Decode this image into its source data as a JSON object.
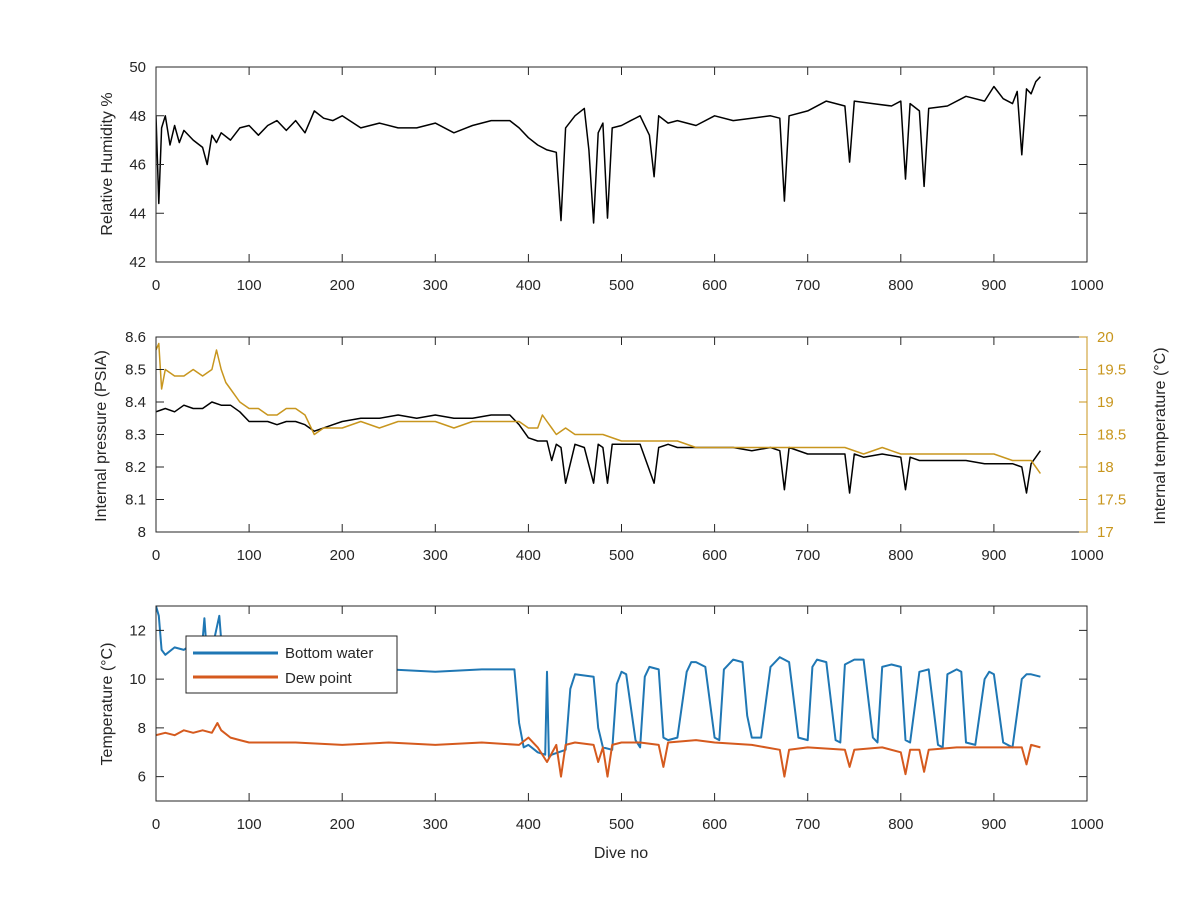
{
  "colors": {
    "humidity": "#000000",
    "pressure": "#000000",
    "internal_temperature": "#c8961e",
    "bottom_water": "#1f77b4",
    "dew_point": "#d55a1e",
    "axis": "#262626"
  },
  "chart_data": [
    {
      "type": "line",
      "ylabel": "Relative Humidity %",
      "xlabel": "",
      "xlim": [
        0,
        1000
      ],
      "ylim": [
        42,
        50
      ],
      "xticks": [
        0,
        100,
        200,
        300,
        400,
        500,
        600,
        700,
        800,
        900,
        1000
      ],
      "yticks": [
        42,
        44,
        46,
        48,
        50
      ],
      "series": [
        {
          "color": "#000000",
          "x": [
            0,
            3,
            6,
            10,
            15,
            20,
            25,
            30,
            40,
            50,
            55,
            60,
            65,
            70,
            80,
            90,
            100,
            110,
            120,
            130,
            140,
            150,
            160,
            170,
            180,
            190,
            200,
            220,
            240,
            260,
            280,
            300,
            320,
            340,
            360,
            380,
            390,
            400,
            410,
            420,
            430,
            435,
            440,
            450,
            460,
            465,
            470,
            475,
            480,
            485,
            490,
            500,
            510,
            520,
            530,
            535,
            540,
            550,
            560,
            580,
            600,
            620,
            640,
            660,
            670,
            675,
            680,
            700,
            720,
            740,
            745,
            750,
            770,
            790,
            800,
            805,
            810,
            820,
            825,
            830,
            850,
            870,
            890,
            900,
            910,
            920,
            925,
            930,
            935,
            940,
            945,
            950
          ],
          "y": [
            48.0,
            44.4,
            47.5,
            48.0,
            46.8,
            47.6,
            46.9,
            47.4,
            47.0,
            46.7,
            46.0,
            47.2,
            46.9,
            47.3,
            47.0,
            47.5,
            47.6,
            47.2,
            47.6,
            47.8,
            47.4,
            47.8,
            47.3,
            48.2,
            47.9,
            47.8,
            48.0,
            47.5,
            47.7,
            47.5,
            47.5,
            47.7,
            47.3,
            47.6,
            47.8,
            47.8,
            47.5,
            47.1,
            46.8,
            46.6,
            46.5,
            43.7,
            47.5,
            48.0,
            48.3,
            46.6,
            43.6,
            47.3,
            47.7,
            43.8,
            47.5,
            47.6,
            47.8,
            48.0,
            47.2,
            45.5,
            48.0,
            47.7,
            47.8,
            47.6,
            48.0,
            47.8,
            47.9,
            48.0,
            47.9,
            44.5,
            48.0,
            48.2,
            48.6,
            48.4,
            46.1,
            48.6,
            48.5,
            48.4,
            48.6,
            45.4,
            48.5,
            48.2,
            45.1,
            48.3,
            48.4,
            48.8,
            48.6,
            49.2,
            48.7,
            48.5,
            49.0,
            46.4,
            49.1,
            48.9,
            49.4,
            49.6
          ]
        }
      ]
    },
    {
      "type": "line",
      "ylabel": "Internal pressure (PSIA)",
      "y2label": "Internal temperature (°C)",
      "xlabel": "",
      "xlim": [
        0,
        1000
      ],
      "ylim": [
        8,
        8.6
      ],
      "y2lim": [
        17,
        20
      ],
      "xticks": [
        0,
        100,
        200,
        300,
        400,
        500,
        600,
        700,
        800,
        900,
        1000
      ],
      "yticks": [
        8,
        8.1,
        8.2,
        8.3,
        8.4,
        8.5,
        8.6
      ],
      "y2ticks": [
        17,
        17.5,
        18,
        18.5,
        19,
        19.5,
        20
      ],
      "series": [
        {
          "axis": "left",
          "color": "#000000",
          "x": [
            0,
            10,
            20,
            30,
            40,
            50,
            60,
            70,
            80,
            90,
            100,
            110,
            120,
            130,
            140,
            150,
            160,
            170,
            180,
            190,
            200,
            220,
            240,
            260,
            280,
            300,
            320,
            340,
            360,
            380,
            390,
            400,
            410,
            420,
            425,
            430,
            435,
            440,
            450,
            460,
            470,
            475,
            480,
            485,
            490,
            500,
            520,
            535,
            540,
            550,
            560,
            580,
            600,
            620,
            640,
            660,
            670,
            675,
            680,
            700,
            720,
            740,
            745,
            750,
            760,
            780,
            800,
            805,
            810,
            820,
            830,
            850,
            870,
            890,
            910,
            920,
            930,
            935,
            940,
            945,
            950
          ],
          "y": [
            8.37,
            8.38,
            8.37,
            8.39,
            8.38,
            8.38,
            8.4,
            8.39,
            8.39,
            8.37,
            8.34,
            8.34,
            8.34,
            8.33,
            8.34,
            8.34,
            8.33,
            8.31,
            8.32,
            8.33,
            8.34,
            8.35,
            8.35,
            8.36,
            8.35,
            8.36,
            8.35,
            8.35,
            8.36,
            8.36,
            8.33,
            8.29,
            8.28,
            8.28,
            8.22,
            8.27,
            8.26,
            8.15,
            8.27,
            8.26,
            8.15,
            8.27,
            8.26,
            8.15,
            8.27,
            8.27,
            8.27,
            8.15,
            8.26,
            8.27,
            8.26,
            8.26,
            8.26,
            8.26,
            8.25,
            8.26,
            8.25,
            8.13,
            8.26,
            8.24,
            8.24,
            8.24,
            8.12,
            8.24,
            8.23,
            8.24,
            8.23,
            8.13,
            8.23,
            8.22,
            8.22,
            8.22,
            8.22,
            8.21,
            8.21,
            8.21,
            8.2,
            8.12,
            8.21,
            8.23,
            8.25
          ]
        },
        {
          "axis": "right",
          "color": "#c8961e",
          "x": [
            0,
            3,
            6,
            10,
            20,
            30,
            40,
            50,
            60,
            65,
            70,
            75,
            80,
            90,
            100,
            110,
            120,
            130,
            140,
            150,
            160,
            170,
            180,
            200,
            220,
            240,
            260,
            280,
            300,
            320,
            340,
            360,
            380,
            390,
            400,
            410,
            415,
            420,
            425,
            430,
            440,
            450,
            460,
            480,
            500,
            520,
            540,
            560,
            580,
            600,
            620,
            640,
            660,
            680,
            700,
            720,
            740,
            760,
            780,
            800,
            820,
            840,
            860,
            880,
            900,
            920,
            930,
            940,
            945,
            950
          ],
          "y": [
            19.8,
            19.9,
            19.2,
            19.5,
            19.4,
            19.4,
            19.5,
            19.4,
            19.5,
            19.8,
            19.5,
            19.3,
            19.2,
            19.0,
            18.9,
            18.9,
            18.8,
            18.8,
            18.9,
            18.9,
            18.8,
            18.5,
            18.6,
            18.6,
            18.7,
            18.6,
            18.7,
            18.7,
            18.7,
            18.6,
            18.7,
            18.7,
            18.7,
            18.7,
            18.6,
            18.6,
            18.8,
            18.7,
            18.6,
            18.5,
            18.6,
            18.5,
            18.5,
            18.5,
            18.4,
            18.4,
            18.4,
            18.4,
            18.3,
            18.3,
            18.3,
            18.3,
            18.3,
            18.3,
            18.3,
            18.3,
            18.3,
            18.2,
            18.3,
            18.2,
            18.2,
            18.2,
            18.2,
            18.2,
            18.2,
            18.1,
            18.1,
            18.1,
            18.0,
            17.9
          ]
        }
      ]
    },
    {
      "type": "line",
      "ylabel": "Temperature (°C)",
      "xlabel": "Dive no",
      "xlim": [
        0,
        1000
      ],
      "ylim": [
        5,
        13
      ],
      "xticks": [
        0,
        100,
        200,
        300,
        400,
        500,
        600,
        700,
        800,
        900,
        1000
      ],
      "yticks": [
        6,
        8,
        10,
        12
      ],
      "legend": {
        "placement": "top-left"
      },
      "series": [
        {
          "name": "Bottom water",
          "color": "#1f77b4",
          "x": [
            0,
            3,
            6,
            10,
            20,
            30,
            40,
            50,
            52,
            54,
            60,
            68,
            70,
            72,
            80,
            100,
            150,
            200,
            250,
            300,
            350,
            385,
            390,
            395,
            400,
            410,
            418,
            420,
            422,
            425,
            440,
            445,
            450,
            470,
            475,
            480,
            490,
            495,
            500,
            505,
            515,
            520,
            525,
            530,
            540,
            545,
            550,
            560,
            570,
            575,
            580,
            590,
            600,
            605,
            610,
            620,
            630,
            635,
            640,
            650,
            660,
            670,
            675,
            680,
            690,
            700,
            705,
            710,
            720,
            730,
            735,
            740,
            750,
            760,
            770,
            775,
            780,
            790,
            800,
            805,
            810,
            820,
            830,
            840,
            845,
            850,
            860,
            865,
            870,
            880,
            890,
            895,
            900,
            910,
            920,
            930,
            935,
            940,
            950
          ],
          "y": [
            13,
            12.6,
            11.2,
            11.0,
            11.3,
            11.2,
            11.5,
            11.6,
            12.5,
            11.4,
            11.2,
            12.6,
            11.6,
            11.2,
            11.2,
            11.0,
            10.6,
            10.5,
            10.4,
            10.3,
            10.4,
            10.4,
            8.2,
            7.2,
            7.3,
            7.0,
            6.9,
            10.3,
            6.8,
            6.9,
            7.1,
            9.6,
            10.2,
            10.1,
            8.0,
            7.2,
            7.1,
            9.8,
            10.3,
            10.2,
            7.5,
            7.2,
            10.1,
            10.5,
            10.4,
            7.6,
            7.5,
            7.6,
            10.3,
            10.7,
            10.7,
            10.5,
            7.6,
            7.5,
            10.4,
            10.8,
            10.7,
            8.5,
            7.6,
            7.6,
            10.5,
            10.9,
            10.8,
            10.7,
            7.6,
            7.5,
            10.5,
            10.8,
            10.7,
            7.5,
            7.4,
            10.6,
            10.8,
            10.8,
            7.6,
            7.4,
            10.5,
            10.6,
            10.5,
            7.5,
            7.4,
            10.3,
            10.4,
            7.3,
            7.2,
            10.2,
            10.4,
            10.3,
            7.4,
            7.3,
            10.0,
            10.3,
            10.2,
            7.4,
            7.2,
            10.0,
            10.2,
            10.2,
            10.1
          ]
        },
        {
          "name": "Dew point",
          "color": "#d55a1e",
          "x": [
            0,
            10,
            20,
            30,
            40,
            50,
            60,
            66,
            70,
            80,
            90,
            100,
            150,
            200,
            250,
            300,
            350,
            390,
            400,
            410,
            420,
            430,
            435,
            440,
            450,
            470,
            475,
            480,
            485,
            490,
            500,
            520,
            540,
            545,
            550,
            580,
            600,
            640,
            670,
            675,
            680,
            700,
            740,
            745,
            750,
            780,
            800,
            805,
            810,
            820,
            825,
            830,
            860,
            900,
            930,
            935,
            940,
            950
          ],
          "y": [
            7.7,
            7.8,
            7.7,
            7.9,
            7.8,
            7.9,
            7.8,
            8.2,
            7.9,
            7.6,
            7.5,
            7.4,
            7.4,
            7.3,
            7.4,
            7.3,
            7.4,
            7.3,
            7.6,
            7.2,
            6.6,
            7.3,
            6.0,
            7.3,
            7.4,
            7.3,
            6.6,
            7.2,
            6.0,
            7.3,
            7.4,
            7.4,
            7.3,
            6.4,
            7.4,
            7.5,
            7.4,
            7.3,
            7.1,
            6.0,
            7.1,
            7.2,
            7.1,
            6.4,
            7.1,
            7.2,
            7.0,
            6.1,
            7.1,
            7.1,
            6.2,
            7.1,
            7.2,
            7.2,
            7.2,
            6.5,
            7.3,
            7.2
          ]
        }
      ]
    }
  ]
}
